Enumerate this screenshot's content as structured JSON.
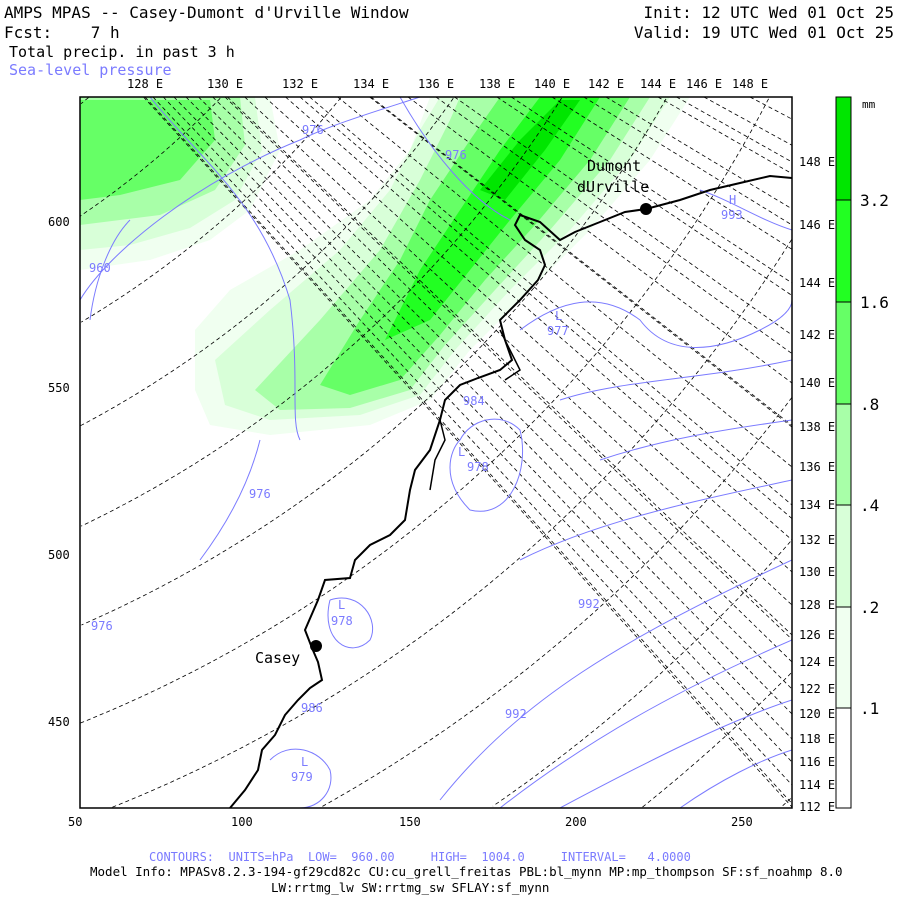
{
  "header": {
    "title": "AMPS MPAS -- Casey-Dumont d'Urville Window",
    "forecast": "Fcst:    7 h",
    "init": "Init: 12 UTC Wed 01 Oct 25",
    "valid": "Valid: 19 UTC Wed 01 Oct 25",
    "field1": "Total precip. in past 3 h",
    "field2": "Sea-level pressure"
  },
  "axes": {
    "top_lon": [
      "128 E",
      "130 E",
      "132 E",
      "134 E",
      "136 E",
      "138 E",
      "140 E",
      "142 E",
      "144 E",
      "146 E",
      "148 E"
    ],
    "right_lon": [
      "148 E",
      "146 E",
      "144 E",
      "142 E",
      "140 E",
      "138 E",
      "136 E",
      "134 E",
      "132 E",
      "130 E",
      "128 E",
      "126 E",
      "124 E",
      "122 E",
      "120 E",
      "118 E",
      "116 E",
      "114 E",
      "112 E"
    ],
    "bottom": [
      "50",
      "100",
      "150",
      "200",
      "250"
    ],
    "left": [
      "600",
      "550",
      "500",
      "450"
    ]
  },
  "colorbar": {
    "unit": "mm",
    "labels": [
      "3.2",
      "1.6",
      ".8",
      ".4",
      ".2",
      ".1"
    ],
    "colors": [
      "#00e600",
      "#22ff22",
      "#66ff66",
      "#a8ffa8",
      "#d8ffd8",
      "#f0fff0",
      "#ffffff"
    ]
  },
  "places": {
    "casey": "Casey",
    "dumont_1": "Dumont",
    "dumont_2": "dUrville"
  },
  "contour_labels": [
    {
      "text": "976"
    },
    {
      "text": "976"
    },
    {
      "text": "960"
    },
    {
      "text": "977",
      "mark": "L"
    },
    {
      "text": "984"
    },
    {
      "text": "978",
      "mark": "L"
    },
    {
      "text": "976"
    },
    {
      "text": "976"
    },
    {
      "text": "978",
      "mark": "L"
    },
    {
      "text": "986"
    },
    {
      "text": "992"
    },
    {
      "text": "992"
    },
    {
      "text": "979",
      "mark": "L"
    },
    {
      "text": "993",
      "mark": "H"
    }
  ],
  "footer": {
    "contours": "CONTOURS:  UNITS=hPa  LOW=  960.00     HIGH=  1004.0     INTERVAL=   4.0000",
    "model": "Model Info: MPASv8.2.3-194-gf29cd82c CU:cu_grell_freitas PBL:bl_mynn MP:mp_thompson SF:sf_noahmp 8.0",
    "physics": "LW:rrtmg_lw SW:rrtmg_sw SFLAY:sf_mynn"
  }
}
